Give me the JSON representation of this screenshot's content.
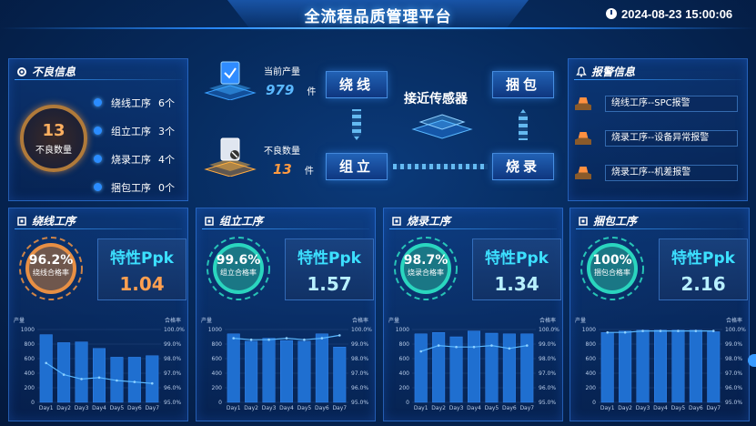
{
  "header": {
    "title": "全流程品质管理平台",
    "datetime": "2024-08-23 15:00:06"
  },
  "defect_panel": {
    "title": "不良信息",
    "total": "13",
    "total_label": "不良数量",
    "items": [
      {
        "label": "绕线工序",
        "value": "6个"
      },
      {
        "label": "组立工序",
        "value": "3个"
      },
      {
        "label": "烧录工序",
        "value": "4个"
      },
      {
        "label": "捆包工序",
        "value": "0个"
      }
    ]
  },
  "center": {
    "output_label": "当前产量",
    "output_value": "979",
    "output_unit": "件",
    "defect_label": "不良数量",
    "defect_value": "13",
    "defect_unit": "件",
    "sensor_label": "接近传感器",
    "steps": [
      "绕线",
      "捆包",
      "组立",
      "烧录"
    ]
  },
  "alarm_panel": {
    "title": "报警信息",
    "items": [
      "绕线工序--SPC报警",
      "烧录工序--设备异常报警",
      "烧录工序--机差报警"
    ]
  },
  "processes": [
    {
      "title": "绕线工序",
      "rate": "96.2%",
      "rate_label": "绕线合格率",
      "ppk_title": "特性Ppk",
      "ppk": "1.04",
      "accent": "#ff9a40",
      "ppk_color": "#ffa050"
    },
    {
      "title": "组立工序",
      "rate": "99.6%",
      "rate_label": "组立合格率",
      "ppk_title": "特性Ppk",
      "ppk": "1.57",
      "accent": "#2ee8c8",
      "ppk_color": "#b8f0ff"
    },
    {
      "title": "烧录工序",
      "rate": "98.7%",
      "rate_label": "烧录合格率",
      "ppk_title": "特性Ppk",
      "ppk": "1.34",
      "accent": "#2ee8c8",
      "ppk_color": "#b8f0ff"
    },
    {
      "title": "捆包工序",
      "rate": "100%",
      "rate_label": "捆包合格率",
      "ppk_title": "特性Ppk",
      "ppk": "2.16",
      "accent": "#2ee8c8",
      "ppk_color": "#b8f0ff"
    }
  ],
  "chart_data": [
    {
      "type": "bar",
      "categories": [
        "Day1",
        "Day2",
        "Day3",
        "Day4",
        "Day5",
        "Day6",
        "Day7"
      ],
      "series": [
        {
          "name": "产量",
          "values": [
            930,
            820,
            830,
            740,
            620,
            620,
            640
          ]
        },
        {
          "name": "合格率",
          "values": [
            97.7,
            96.9,
            96.6,
            96.7,
            96.5,
            96.4,
            96.3
          ]
        }
      ],
      "ylabel": "产量",
      "y2label": "合格率",
      "ylim": [
        0,
        1000
      ],
      "y2lim": [
        95.0,
        100.0
      ],
      "yticks": [
        "0",
        "200",
        "400",
        "600",
        "800",
        "1000"
      ],
      "y2ticks": [
        "95.0%",
        "96.0%",
        "97.0%",
        "98.0%",
        "99.0%",
        "100.0%"
      ]
    },
    {
      "type": "bar",
      "categories": [
        "Day1",
        "Day2",
        "Day3",
        "Day4",
        "Day5",
        "Day6",
        "Day7"
      ],
      "series": [
        {
          "name": "产量",
          "values": [
            940,
            840,
            880,
            850,
            840,
            940,
            760
          ]
        },
        {
          "name": "合格率",
          "values": [
            99.4,
            99.3,
            99.3,
            99.4,
            99.3,
            99.4,
            99.6
          ]
        }
      ],
      "ylabel": "产量",
      "y2label": "合格率",
      "ylim": [
        0,
        1000
      ],
      "y2lim": [
        95.0,
        100.0
      ],
      "yticks": [
        "0",
        "200",
        "400",
        "600",
        "800",
        "1000"
      ],
      "y2ticks": [
        "95.0%",
        "96.0%",
        "97.0%",
        "98.0%",
        "99.0%",
        "100.0%"
      ]
    },
    {
      "type": "bar",
      "categories": [
        "Day1",
        "Day2",
        "Day3",
        "Day4",
        "Day5",
        "Day6",
        "Day7"
      ],
      "series": [
        {
          "name": "产量",
          "values": [
            940,
            960,
            900,
            980,
            950,
            940,
            940
          ]
        },
        {
          "name": "合格率",
          "values": [
            98.5,
            98.9,
            98.8,
            98.8,
            98.9,
            98.7,
            98.9
          ]
        }
      ],
      "ylabel": "产量",
      "y2label": "合格率",
      "ylim": [
        0,
        1000
      ],
      "y2lim": [
        95.0,
        100.0
      ],
      "yticks": [
        "0",
        "200",
        "400",
        "600",
        "800",
        "1000"
      ],
      "y2ticks": [
        "95.0%",
        "96.0%",
        "97.0%",
        "98.0%",
        "99.0%",
        "100.0%"
      ]
    },
    {
      "type": "bar",
      "categories": [
        "Day1",
        "Day2",
        "Day3",
        "Day4",
        "Day5",
        "Day6",
        "Day7"
      ],
      "series": [
        {
          "name": "产量",
          "values": [
            960,
            980,
            990,
            990,
            990,
            990,
            970
          ]
        },
        {
          "name": "合格率",
          "values": [
            99.8,
            99.8,
            99.9,
            99.9,
            99.9,
            99.9,
            99.9
          ]
        }
      ],
      "ylabel": "产量",
      "y2label": "合格率",
      "ylim": [
        0,
        1000
      ],
      "y2lim": [
        95.0,
        100.0
      ],
      "yticks": [
        "0",
        "200",
        "400",
        "600",
        "800",
        "1000"
      ],
      "y2ticks": [
        "95.0%",
        "96.0%",
        "97.0%",
        "98.0%",
        "99.0%",
        "100.0%"
      ]
    }
  ]
}
